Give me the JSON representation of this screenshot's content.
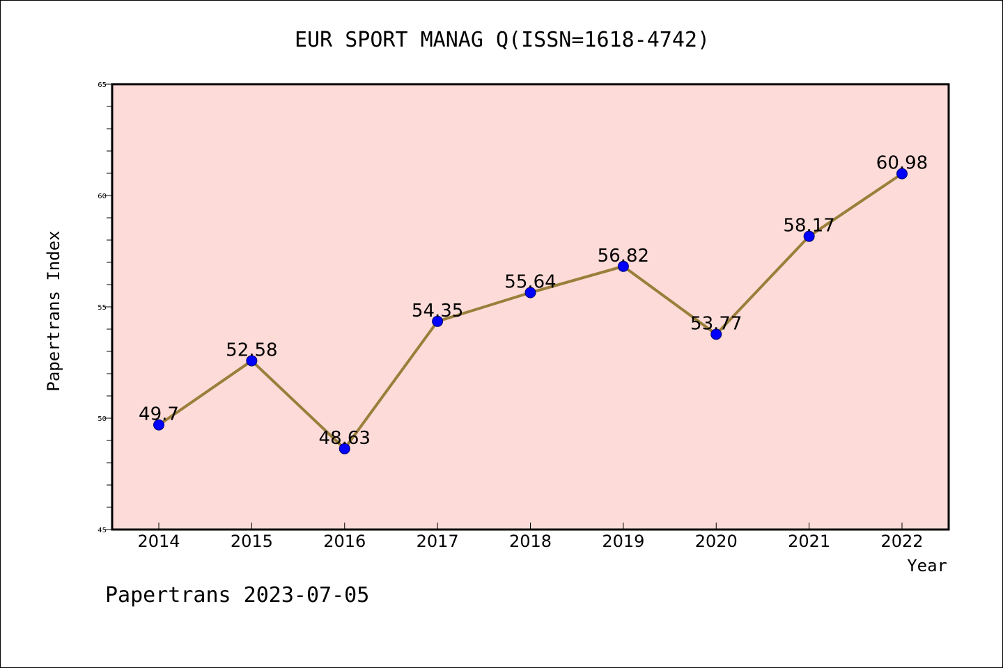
{
  "chart_data": {
    "type": "line",
    "title": "EUR SPORT MANAG Q(ISSN=1618-4742)",
    "xlabel": "Year",
    "ylabel": "Papertrans Index",
    "categories": [
      "2014",
      "2015",
      "2016",
      "2017",
      "2018",
      "2019",
      "2020",
      "2021",
      "2022"
    ],
    "series": [
      {
        "values": [
          49.7,
          52.58,
          48.63,
          54.35,
          55.64,
          56.82,
          53.77,
          58.17,
          60.98
        ],
        "data_labels": [
          "49.7",
          "52.58",
          "48.63",
          "54.35",
          "55.64",
          "56.82",
          "53.77",
          "58.17",
          "60.98"
        ]
      }
    ],
    "ylim": [
      45,
      65
    ],
    "yticks": [
      45,
      50,
      55,
      60,
      65
    ],
    "ytick_labels": [
      "45",
      "50",
      "55",
      "60",
      "65"
    ],
    "grid": false,
    "line_color": "#9a7f3b",
    "marker_color": "#0000ff",
    "plot_background": "#fddbd8"
  },
  "footer": "Papertrans 2023-07-05"
}
